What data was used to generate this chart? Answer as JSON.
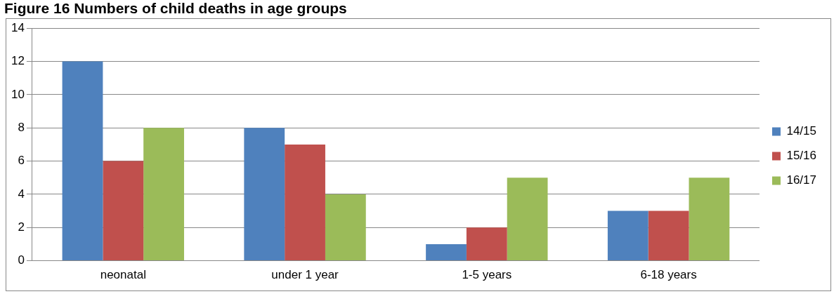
{
  "chart_data": {
    "type": "bar",
    "title": "Figure 16 Numbers of child deaths in age groups",
    "categories": [
      "neonatal",
      "under 1 year",
      "1-5 years",
      "6-18 years"
    ],
    "series": [
      {
        "name": "14/15",
        "color": "#4f81bd",
        "values": [
          12,
          8,
          1,
          3
        ]
      },
      {
        "name": "15/16",
        "color": "#c0504d",
        "values": [
          6,
          7,
          2,
          3
        ]
      },
      {
        "name": "16/17",
        "color": "#9bbb59",
        "values": [
          8,
          4,
          5,
          5
        ]
      }
    ],
    "ylim": [
      0,
      14
    ],
    "yticks": [
      0,
      2,
      4,
      6,
      8,
      10,
      12,
      14
    ],
    "grid": "y",
    "legend": "right"
  }
}
